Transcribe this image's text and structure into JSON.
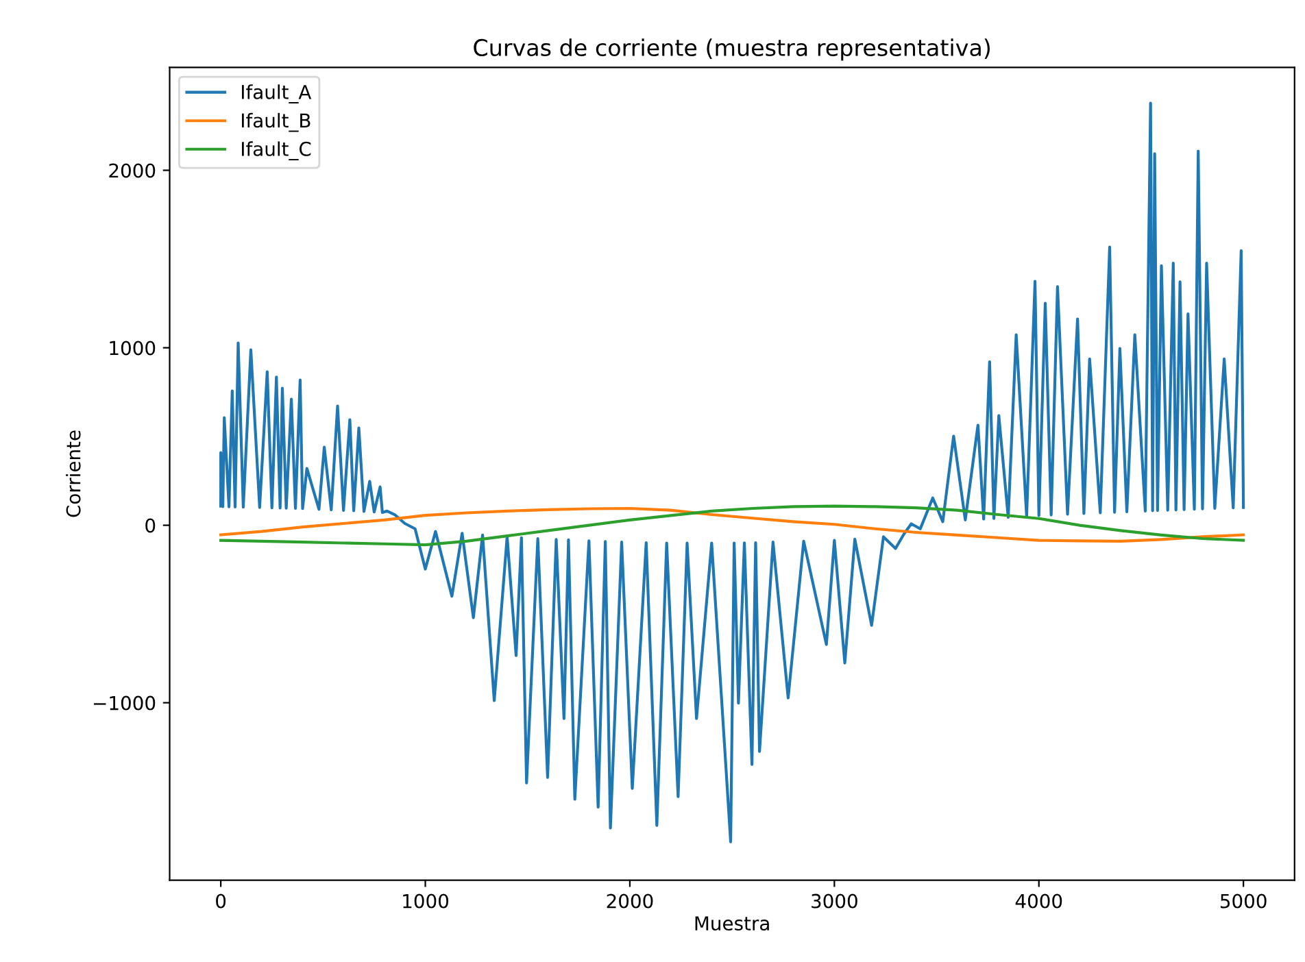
{
  "chart_data": {
    "type": "line",
    "title": "Curvas de corriente (muestra representativa)",
    "xlabel": "Muestra",
    "ylabel": "Corriente",
    "xlim": [
      -250,
      5250
    ],
    "ylim": [
      -2000,
      2580
    ],
    "xticks": [
      0,
      1000,
      2000,
      3000,
      4000,
      5000
    ],
    "yticks": [
      {
        "value": -1000,
        "label": "−1000"
      },
      0,
      1000,
      2000
    ],
    "grid": false,
    "legend": "top left",
    "marker": "none",
    "line_style": "solid",
    "series": [
      {
        "name": "Ifault_A",
        "color": "#1f77b4",
        "x": [
          0,
          0,
          10,
          17,
          40,
          56,
          70,
          85,
          110,
          147,
          190,
          227,
          250,
          272,
          290,
          301,
          320,
          345,
          365,
          388,
          400,
          421,
          480,
          506,
          540,
          571,
          600,
          631,
          650,
          675,
          700,
          728,
          750,
          779,
          790,
          813,
          850,
          900,
          950,
          1000,
          1050,
          1130,
          1180,
          1235,
          1280,
          1337,
          1400,
          1444,
          1470,
          1495,
          1550,
          1598,
          1640,
          1678,
          1700,
          1731,
          1800,
          1845,
          1880,
          1905,
          1960,
          2012,
          2080,
          2132,
          2180,
          2236,
          2280,
          2326,
          2400,
          2493,
          2510,
          2531,
          2560,
          2597,
          2615,
          2634,
          2700,
          2774,
          2850,
          2961,
          3000,
          3051,
          3100,
          3182,
          3240,
          3299,
          3340,
          3376,
          3420,
          3481,
          3530,
          3583,
          3640,
          3702,
          3730,
          3759,
          3780,
          3804,
          3850,
          3889,
          3940,
          3981,
          4000,
          4031,
          4060,
          4091,
          4140,
          4189,
          4220,
          4248,
          4300,
          4346,
          4370,
          4396,
          4430,
          4469,
          4520,
          4546,
          4556,
          4566,
          4580,
          4599,
          4630,
          4657,
          4670,
          4690,
          4710,
          4729,
          4760,
          4779,
          4800,
          4820,
          4860,
          4906,
          4950,
          4989,
          5000
        ],
        "values": [
          108,
          409,
          105,
          606,
          104,
          757,
          103,
          1027,
          102,
          988,
          100,
          865,
          98,
          835,
          97,
          772,
          96,
          710,
          95,
          818,
          94,
          320,
          90,
          440,
          87,
          672,
          84,
          595,
          82,
          548,
          78,
          247,
          75,
          216,
          72,
          80,
          60,
          10,
          -20,
          -247,
          -35,
          -400,
          -45,
          -521,
          -55,
          -988,
          -65,
          -734,
          -70,
          -1452,
          -75,
          -1421,
          -80,
          -1089,
          -82,
          -1544,
          -88,
          -1588,
          -92,
          -1706,
          -95,
          -1483,
          -98,
          -1691,
          -100,
          -1529,
          -100,
          -1089,
          -100,
          -1784,
          -100,
          -1002,
          -99,
          -1348,
          -98,
          -1274,
          -95,
          -973,
          -90,
          -672,
          -85,
          -776,
          -78,
          -564,
          -65,
          -131,
          -50,
          8,
          -20,
          154,
          20,
          502,
          30,
          564,
          35,
          921,
          38,
          618,
          45,
          1073,
          50,
          1374,
          55,
          1251,
          58,
          1344,
          62,
          1162,
          66,
          937,
          70,
          1567,
          73,
          996,
          76,
          1073,
          80,
          2378,
          82,
          2093,
          83,
          1462,
          85,
          1477,
          86,
          1371,
          88,
          1191,
          90,
          2108,
          92,
          1477,
          95,
          937,
          98,
          1547,
          100
        ]
      },
      {
        "name": "Ifault_B",
        "color": "#ff7f0e",
        "x": [
          0,
          200,
          400,
          600,
          800,
          1000,
          1200,
          1400,
          1600,
          1800,
          2000,
          2200,
          2400,
          2600,
          2800,
          3000,
          3200,
          3400,
          3600,
          3800,
          4000,
          4200,
          4400,
          4600,
          4800,
          5000
        ],
        "values": [
          -54,
          -35,
          -10,
          10,
          30,
          56,
          70,
          80,
          88,
          93,
          95,
          85,
          60,
          40,
          20,
          5,
          -20,
          -40,
          -55,
          -70,
          -85,
          -88,
          -90,
          -80,
          -65,
          -54
        ]
      },
      {
        "name": "Ifault_C",
        "color": "#2ca02c",
        "x": [
          0,
          200,
          400,
          600,
          800,
          1000,
          1200,
          1400,
          1600,
          1800,
          2000,
          2200,
          2400,
          2600,
          2800,
          3000,
          3200,
          3400,
          3600,
          3800,
          4000,
          4200,
          4400,
          4600,
          4800,
          5000
        ],
        "values": [
          -85,
          -90,
          -95,
          -100,
          -105,
          -110,
          -90,
          -60,
          -30,
          0,
          30,
          55,
          80,
          95,
          105,
          108,
          105,
          98,
          85,
          60,
          38,
          0,
          -30,
          -55,
          -75,
          -85
        ]
      }
    ]
  }
}
